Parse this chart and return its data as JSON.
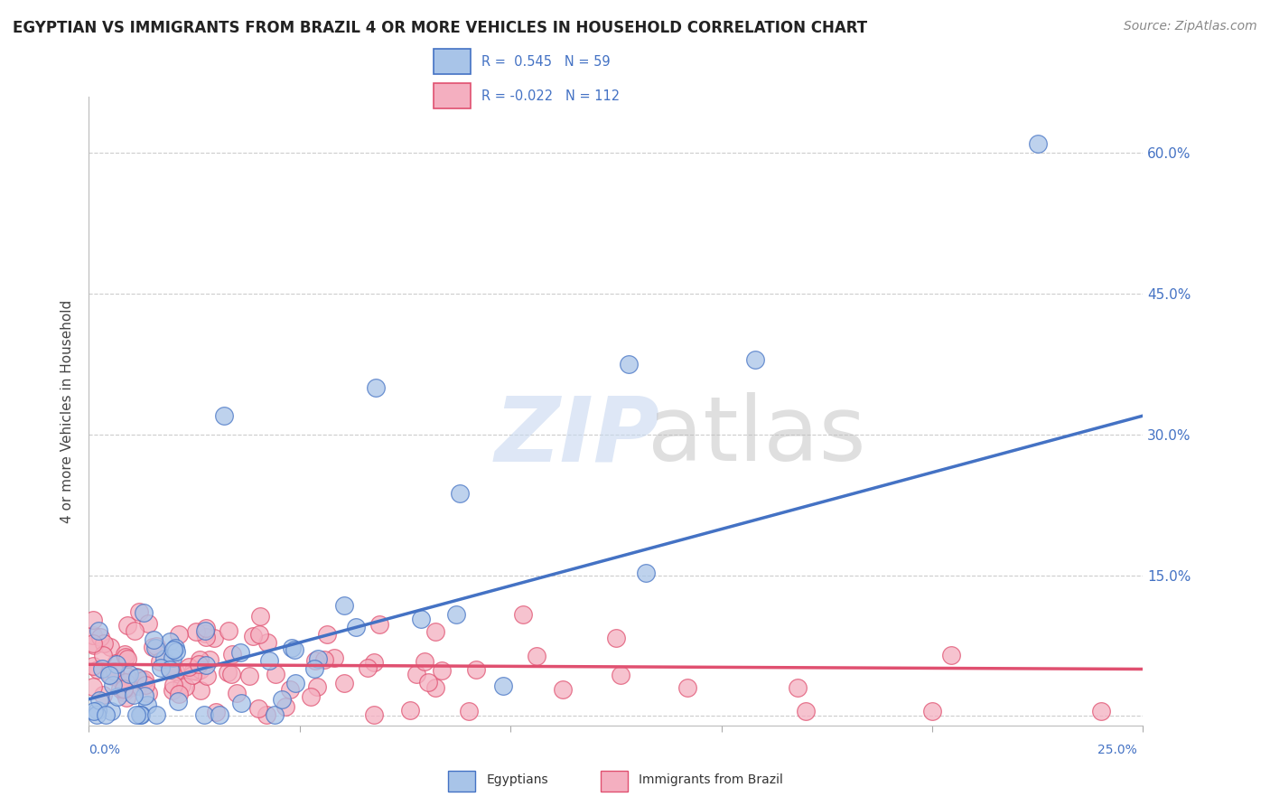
{
  "title": "EGYPTIAN VS IMMIGRANTS FROM BRAZIL 4 OR MORE VEHICLES IN HOUSEHOLD CORRELATION CHART",
  "source": "Source: ZipAtlas.com",
  "ylabel": "4 or more Vehicles in Household",
  "ytick_vals": [
    0.0,
    0.15,
    0.3,
    0.45,
    0.6
  ],
  "ytick_labels": [
    "",
    "15.0%",
    "30.0%",
    "45.0%",
    "60.0%"
  ],
  "xlim": [
    0.0,
    0.25
  ],
  "ylim": [
    -0.01,
    0.66
  ],
  "color_egyptian": "#a8c4e8",
  "color_brazil": "#f4afc0",
  "line_color_egyptian": "#4472c4",
  "line_color_brazil": "#e05070",
  "legend_box_color": "#e8e8f0",
  "watermark_zip": "#c8d8f0",
  "watermark_atlas": "#c0c0c0",
  "eg_line_x0": 0.0,
  "eg_line_y0": 0.018,
  "eg_line_x1": 0.25,
  "eg_line_y1": 0.32,
  "br_line_x0": 0.0,
  "br_line_y0": 0.055,
  "br_line_x1": 0.25,
  "br_line_y1": 0.05
}
